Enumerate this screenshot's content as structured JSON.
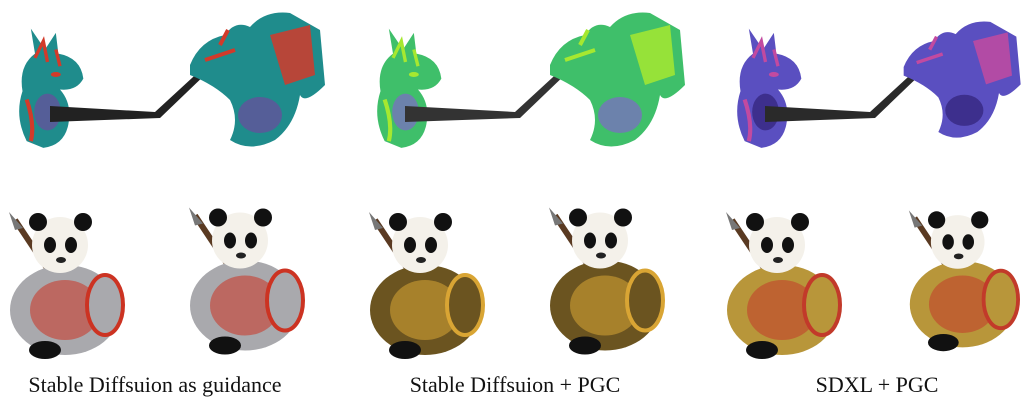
{
  "panels": [
    {
      "caption": "Stable Diffsuion as guidance"
    },
    {
      "caption": "Stable Diffsuion + PGC"
    },
    {
      "caption": "SDXL + PGC"
    }
  ]
}
